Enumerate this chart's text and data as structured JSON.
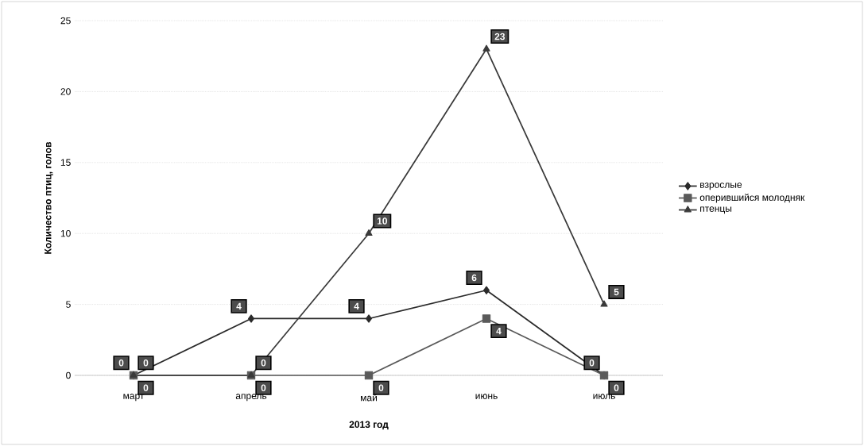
{
  "chart_data": {
    "type": "line",
    "xlabel": "2013 год",
    "ylabel": "Количество птиц, голов",
    "categories": [
      "март",
      "апрель",
      "май",
      "июнь",
      "июль"
    ],
    "series": [
      {
        "name": "взрослые",
        "color": "#2a2a2a",
        "marker": "diamond",
        "values": [
          0,
          4,
          4,
          6,
          0
        ]
      },
      {
        "name": "оперившийся молодняк",
        "color": "#5a5a5a",
        "marker": "square",
        "values": [
          0,
          0,
          0,
          4,
          0
        ]
      },
      {
        "name": "птенцы",
        "color": "#3a3a3a",
        "marker": "triangle",
        "values": [
          0,
          0,
          10,
          23,
          5
        ]
      }
    ],
    "ylim": [
      0,
      25
    ],
    "yticks": [
      0,
      5,
      10,
      15,
      20,
      25
    ],
    "grid": "y",
    "legend": "right",
    "data_labels": true
  }
}
